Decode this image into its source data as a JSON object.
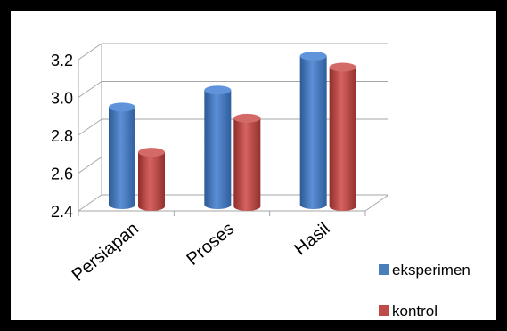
{
  "chart_data": {
    "type": "bar",
    "categories": [
      "Persiapan",
      "Proses",
      "Hasil"
    ],
    "series": [
      {
        "name": "eksperimen",
        "values": [
          2.93,
          3.02,
          3.2
        ]
      },
      {
        "name": "kontrol",
        "values": [
          2.71,
          2.89,
          3.16
        ]
      }
    ],
    "yticks": [
      "2.4",
      "2.6",
      "2.8",
      "3.0",
      "3.2"
    ],
    "ylim": [
      2.4,
      3.2
    ],
    "grid": true,
    "legend": "bottom-right",
    "colors": [
      "#4a7ebb",
      "#be4b48"
    ]
  }
}
